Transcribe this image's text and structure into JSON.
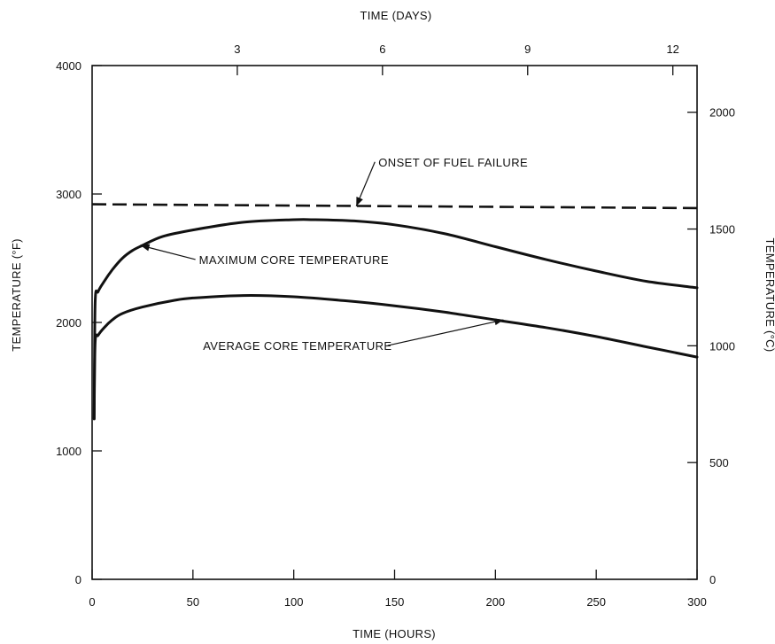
{
  "chart_data": {
    "type": "line",
    "title": "",
    "xlabel": "TIME (HOURS)",
    "x2label": "TIME (DAYS)",
    "ylabel": "TEMPERATURE (°F)",
    "y2label": "TEMPERATURE (°C)",
    "xlim": [
      0,
      300
    ],
    "ylim": [
      0,
      4000
    ],
    "y2lim": [
      0,
      2200
    ],
    "grid": false,
    "legend": "none",
    "x_ticks": [
      0,
      50,
      100,
      150,
      200,
      250,
      300
    ],
    "x_tick_labels": [
      "0",
      "50",
      "100",
      "150",
      "200",
      "250",
      "300"
    ],
    "x2_ticks": [
      3,
      6,
      9,
      12
    ],
    "x2_tick_labels": [
      "3",
      "6",
      "9",
      "12"
    ],
    "y_ticks": [
      0,
      1000,
      2000,
      3000,
      4000
    ],
    "y_tick_labels": [
      "0",
      "1000",
      "2000",
      "3000",
      "4000"
    ],
    "y2_ticks": [
      0,
      500,
      1000,
      1500,
      2000
    ],
    "y2_tick_labels": [
      "0",
      "500",
      "1000",
      "1500",
      "2000"
    ],
    "series": [
      {
        "name": "MAXIMUM CORE TEMPERATURE",
        "style": "solid",
        "x": [
          1,
          1.5,
          3,
          6,
          10,
          15,
          20,
          25,
          35,
          50,
          75,
          100,
          110,
          130,
          150,
          175,
          200,
          225,
          250,
          275,
          300
        ],
        "y": [
          1250,
          2150,
          2240,
          2320,
          2410,
          2500,
          2560,
          2600,
          2670,
          2720,
          2780,
          2800,
          2800,
          2790,
          2760,
          2690,
          2590,
          2490,
          2400,
          2320,
          2270
        ]
      },
      {
        "name": "AVERAGE CORE TEMPERATURE",
        "style": "solid",
        "x": [
          1,
          1.5,
          3,
          6,
          10,
          15,
          25,
          40,
          50,
          75,
          100,
          125,
          150,
          175,
          200,
          225,
          250,
          275,
          300
        ],
        "y": [
          1250,
          1840,
          1900,
          1960,
          2020,
          2070,
          2120,
          2170,
          2190,
          2210,
          2200,
          2170,
          2130,
          2080,
          2020,
          1960,
          1890,
          1810,
          1730
        ]
      },
      {
        "name": "ONSET OF FUEL FAILURE",
        "style": "dashed",
        "x": [
          0,
          300
        ],
        "y": [
          2920,
          2890
        ]
      }
    ],
    "annotations": [
      {
        "text": "ONSET OF FUEL FAILURE",
        "text_x": 142,
        "text_y": 3250,
        "point_x": 131,
        "point_y": 2905
      },
      {
        "text": "MAXIMUM CORE TEMPERATURE",
        "text_x": 53,
        "text_y": 2490,
        "point_x": 24,
        "point_y": 2600
      },
      {
        "text": "AVERAGE CORE TEMPERATURE",
        "text_x": 55,
        "text_y": 1820,
        "point_x": 204,
        "point_y": 2020
      }
    ]
  }
}
